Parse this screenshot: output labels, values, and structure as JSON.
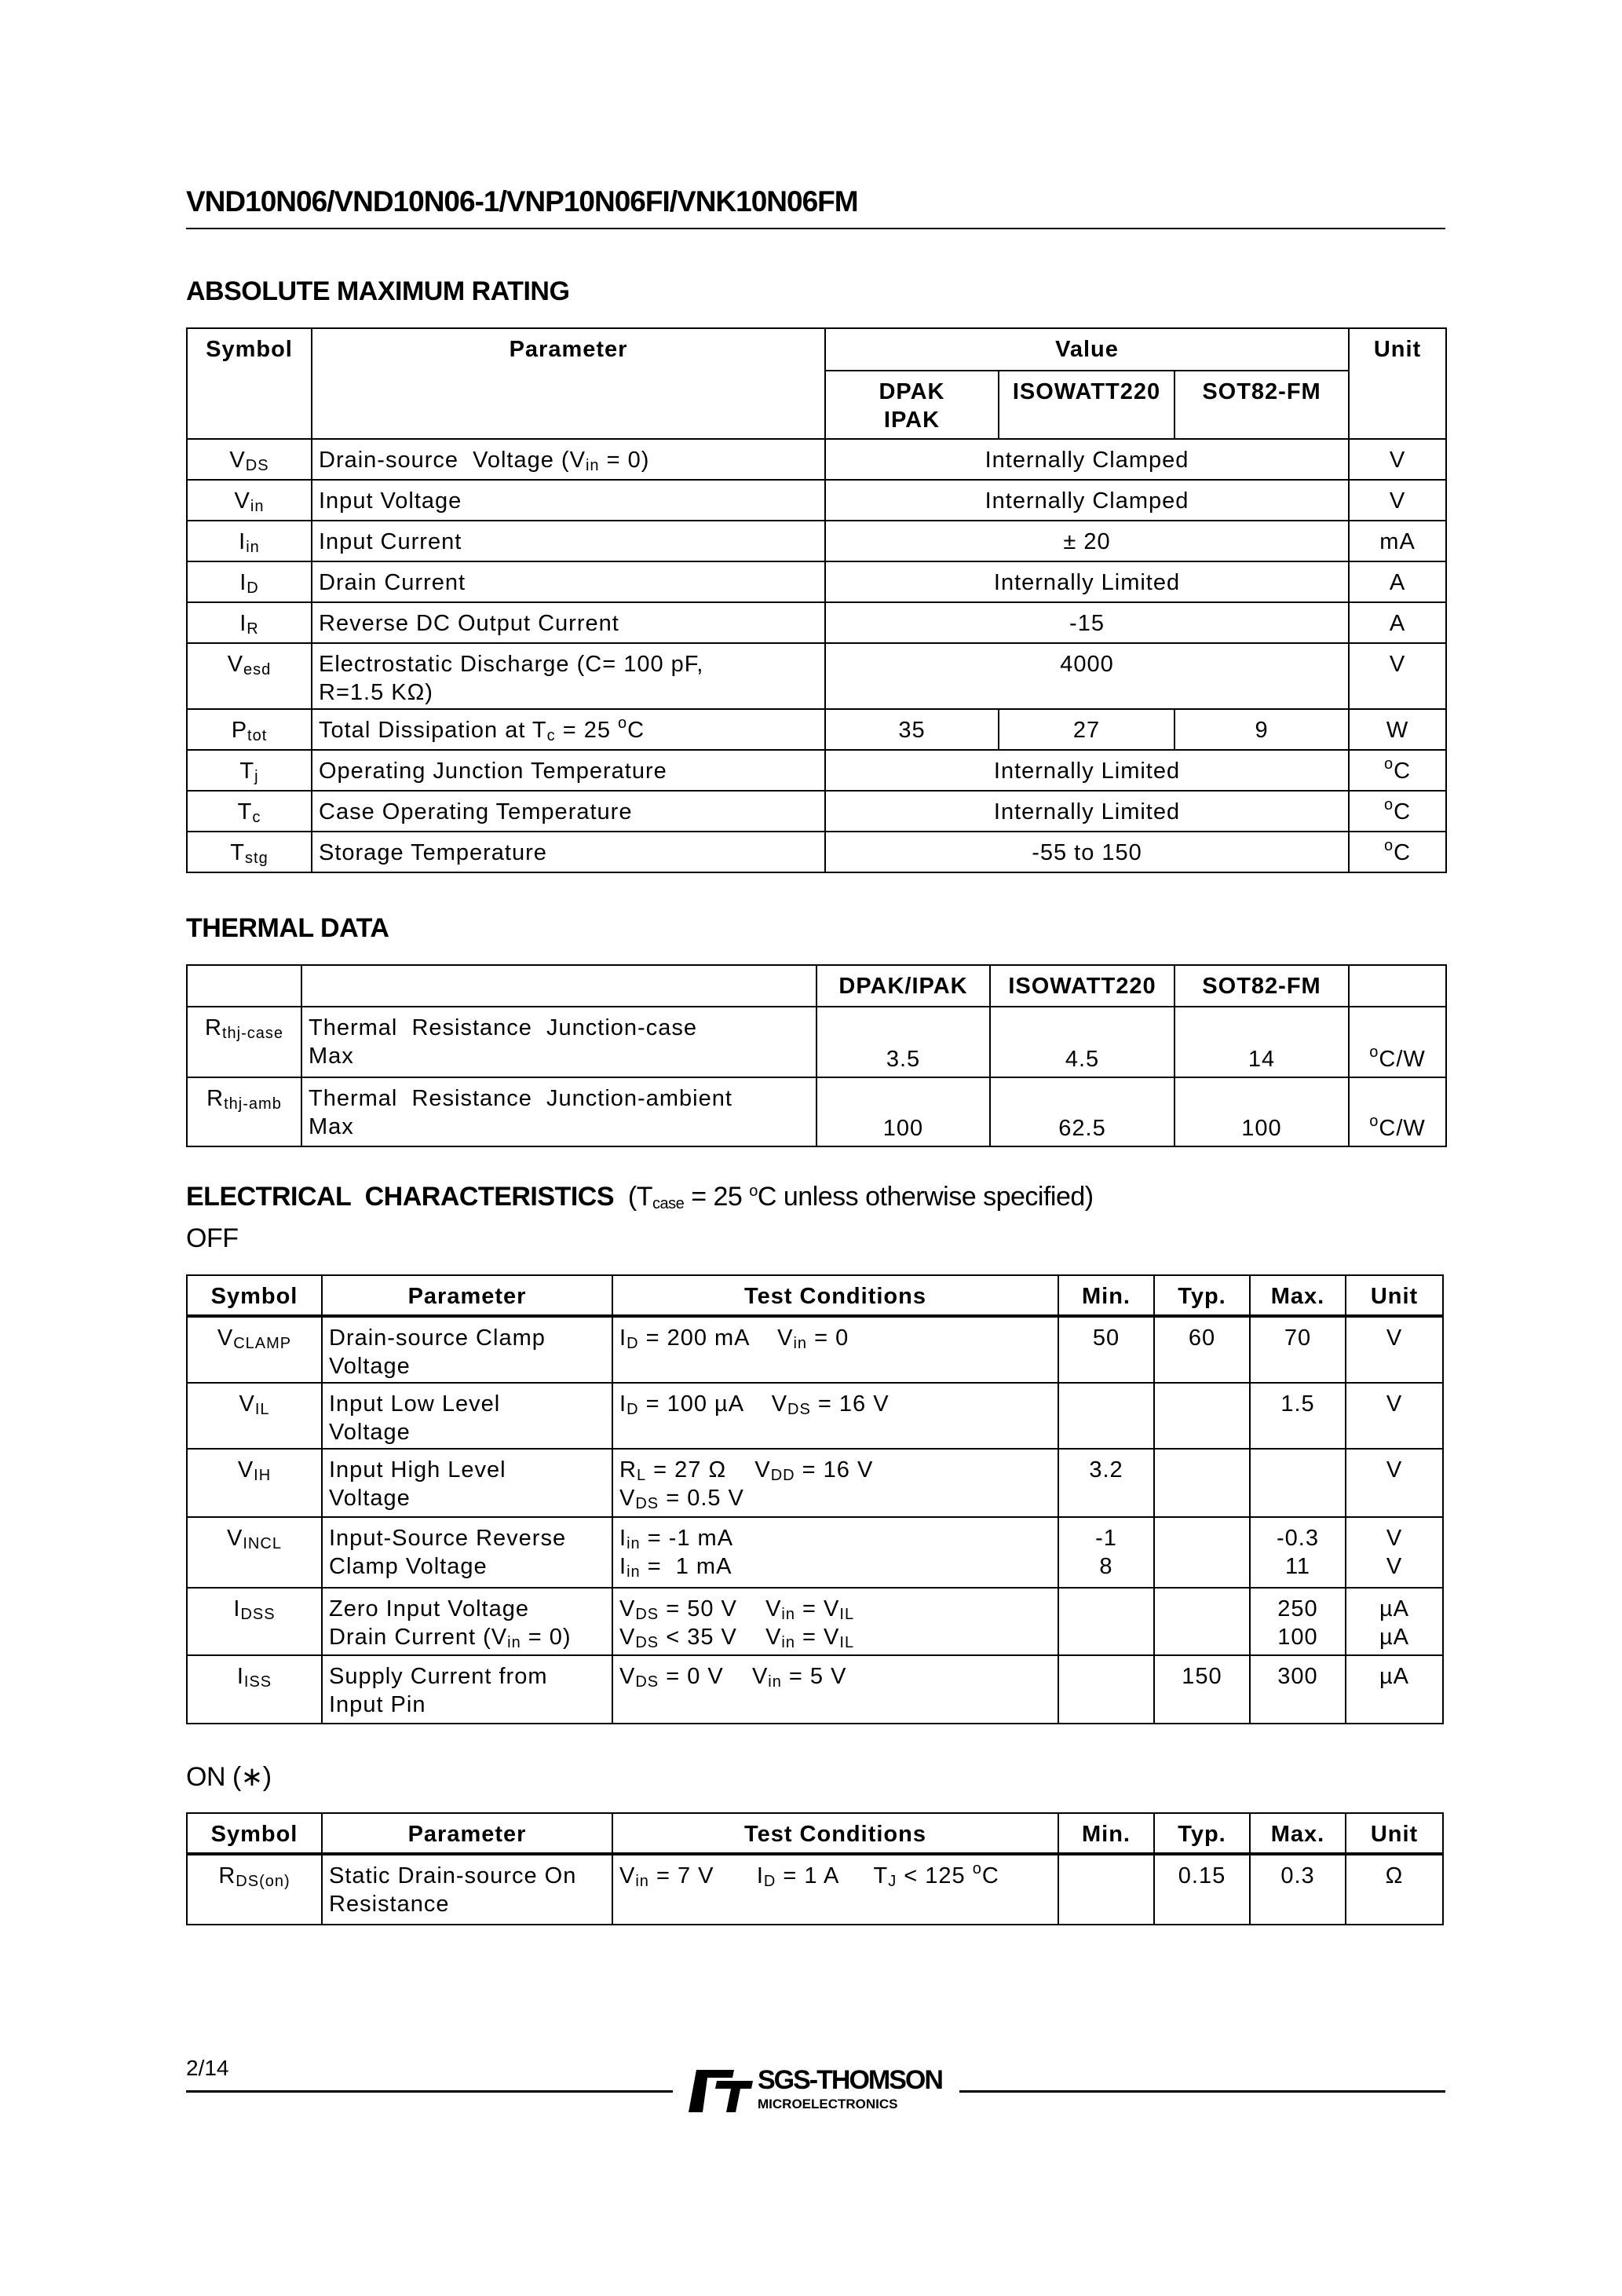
{
  "header": {
    "title": "VND10N06/VND10N06-1/VNP10N06FI/VNK10N06FM"
  },
  "absolute_max": {
    "heading": "ABSOLUTE MAXIMUM RATING",
    "columns": {
      "symbol": "Symbol",
      "parameter": "Parameter",
      "value": "Value",
      "unit": "Unit",
      "packages": [
        "DPAK\nIPAK",
        "ISOWATT220",
        "SOT82-FM"
      ]
    },
    "rows": [
      {
        "symbol": [
          "V",
          {
            "sub": "DS"
          }
        ],
        "parameter": [
          "Drain-source  Voltage (V",
          {
            "sub": "in"
          },
          " = 0)"
        ],
        "value": "Internally Clamped",
        "unit": "V"
      },
      {
        "symbol": [
          "V",
          {
            "sub": "in"
          }
        ],
        "parameter": [
          "Input Voltage"
        ],
        "value": "Internally Clamped",
        "unit": "V"
      },
      {
        "symbol": [
          "I",
          {
            "sub": "in"
          }
        ],
        "parameter": [
          "Input Current"
        ],
        "value": "± 20",
        "unit": "mA"
      },
      {
        "symbol": [
          "I",
          {
            "sub": "D"
          }
        ],
        "parameter": [
          "Drain Current"
        ],
        "value": "Internally Limited",
        "unit": "A"
      },
      {
        "symbol": [
          "I",
          {
            "sub": "R"
          }
        ],
        "parameter": [
          "Reverse DC Output Current"
        ],
        "value": "-15",
        "unit": "A"
      },
      {
        "symbol": [
          "V",
          {
            "sub": "esd"
          }
        ],
        "parameter": [
          "Electrostatic Discharge (C= 100 pF,\nR=1.5 KΩ)"
        ],
        "value": "4000",
        "unit": "V"
      },
      {
        "symbol": [
          "P",
          {
            "sub": "tot"
          }
        ],
        "parameter": [
          "Total Dissipation at T",
          {
            "sub": "c"
          },
          " = 25 ",
          {
            "sup": "o"
          },
          "C"
        ],
        "values": [
          "35",
          "27",
          "9"
        ],
        "unit": "W"
      },
      {
        "symbol": [
          "T",
          {
            "sub": "j"
          }
        ],
        "parameter": [
          "Operating Junction Temperature"
        ],
        "value": "Internally Limited",
        "unit": [
          {
            "sup": "o"
          },
          "C"
        ]
      },
      {
        "symbol": [
          "T",
          {
            "sub": "c"
          }
        ],
        "parameter": [
          "Case Operating Temperature"
        ],
        "value": "Internally Limited",
        "unit": [
          {
            "sup": "o"
          },
          "C"
        ]
      },
      {
        "symbol": [
          "T",
          {
            "sub": "stg"
          }
        ],
        "parameter": [
          "Storage Temperature"
        ],
        "value": "-55 to 150",
        "unit": [
          {
            "sup": "o"
          },
          "C"
        ]
      }
    ]
  },
  "thermal": {
    "heading": "THERMAL  DATA",
    "columns": [
      "DPAK/IPAK",
      "ISOWATT220",
      "SOT82-FM"
    ],
    "rows": [
      {
        "symbol": [
          "R",
          {
            "sub": "thj-case"
          }
        ],
        "parameter": [
          "Thermal  Resistance  Junction-case\nMax"
        ],
        "values": [
          "3.5",
          "4.5",
          "14"
        ],
        "unit": [
          {
            "sup": "o"
          },
          "C/W"
        ]
      },
      {
        "symbol": [
          "R",
          {
            "sub": "thj-amb"
          }
        ],
        "parameter": [
          "Thermal  Resistance  Junction-ambient\nMax"
        ],
        "values": [
          "100",
          "62.5",
          "100"
        ],
        "unit": [
          {
            "sup": "o"
          },
          "C/W"
        ]
      }
    ]
  },
  "electrical": {
    "heading": "ELECTRICAL  CHARACTERISTICS",
    "condition": [
      "(T",
      {
        "sub": "case"
      },
      " = 25 ",
      {
        "sup": "o"
      },
      "C unless otherwise specified)"
    ],
    "columns": [
      "Symbol",
      "Parameter",
      "Test Conditions",
      "Min.",
      "Typ.",
      "Max.",
      "Unit"
    ],
    "off": {
      "heading": "OFF",
      "rows": [
        {
          "symbol": [
            "V",
            {
              "sub": "CLAMP"
            }
          ],
          "parameter": [
            "Drain-source Clamp\nVoltage"
          ],
          "conditions": [
            "I",
            {
              "sub": "D"
            },
            " = 200 mA    V",
            {
              "sub": "in"
            },
            " = 0"
          ],
          "min": "50",
          "typ": "60",
          "max": "70",
          "unit": "V"
        },
        {
          "symbol": [
            "V",
            {
              "sub": "IL"
            }
          ],
          "parameter": [
            "Input Low Level\nVoltage"
          ],
          "conditions": [
            "I",
            {
              "sub": "D"
            },
            " = 100 µA    V",
            {
              "sub": "DS"
            },
            " = 16 V"
          ],
          "min": "",
          "typ": "",
          "max": "1.5",
          "unit": "V"
        },
        {
          "symbol": [
            "V",
            {
              "sub": "IH"
            }
          ],
          "parameter": [
            "Input High Level\nVoltage"
          ],
          "conditions": [
            "R",
            {
              "sub": "L"
            },
            " = 27 Ω    V",
            {
              "sub": "DD"
            },
            " = 16 V\nV",
            {
              "sub": "DS"
            },
            " = 0.5 V"
          ],
          "min": "3.2",
          "typ": "",
          "max": "",
          "unit": "V"
        },
        {
          "symbol": [
            "V",
            {
              "sub": "INCL"
            }
          ],
          "parameter": [
            "Input-Source Reverse\nClamp Voltage"
          ],
          "conditions": [
            "I",
            {
              "sub": "in"
            },
            " = -1 mA\nI",
            {
              "sub": "in"
            },
            " =  1 mA"
          ],
          "min": "-1\n8",
          "typ": "",
          "max": "-0.3\n11",
          "unit": "V\nV"
        },
        {
          "symbol": [
            "I",
            {
              "sub": "DSS"
            }
          ],
          "parameter": [
            "Zero Input Voltage\nDrain Current (V",
            {
              "sub": "in"
            },
            " = 0)"
          ],
          "conditions": [
            "V",
            {
              "sub": "DS"
            },
            " = 50 V    V",
            {
              "sub": "in"
            },
            " = V",
            {
              "sub": "IL"
            },
            "\nV",
            {
              "sub": "DS"
            },
            " < 35 V    V",
            {
              "sub": "in"
            },
            " = V",
            {
              "sub": "IL"
            }
          ],
          "min": "",
          "typ": "",
          "max": "250\n100",
          "unit": "µA\nµA"
        },
        {
          "symbol": [
            "I",
            {
              "sub": "ISS"
            }
          ],
          "parameter": [
            "Supply Current from\nInput Pin"
          ],
          "conditions": [
            "V",
            {
              "sub": "DS"
            },
            " = 0 V    V",
            {
              "sub": "in"
            },
            " = 5 V"
          ],
          "min": "",
          "typ": "150",
          "max": "300",
          "unit": "µA"
        }
      ]
    },
    "on": {
      "heading": "ON (∗)",
      "rows": [
        {
          "symbol": [
            "R",
            {
              "sub": "DS(on)"
            }
          ],
          "parameter": [
            "Static Drain-source On\nResistance"
          ],
          "conditions": [
            "V",
            {
              "sub": "in"
            },
            " = 7 V      I",
            {
              "sub": "D"
            },
            " = 1 A     T",
            {
              "sub": "J"
            },
            " < 125 ",
            {
              "sup": "o"
            },
            "C"
          ],
          "min": "",
          "typ": "0.15",
          "max": "0.3",
          "unit": "Ω"
        }
      ]
    }
  },
  "footer": {
    "page": "2/14",
    "logo_text": "SGS-THOMSON",
    "logo_subtext": "MICROELECTRONICS",
    "logo_mark": "ST"
  }
}
